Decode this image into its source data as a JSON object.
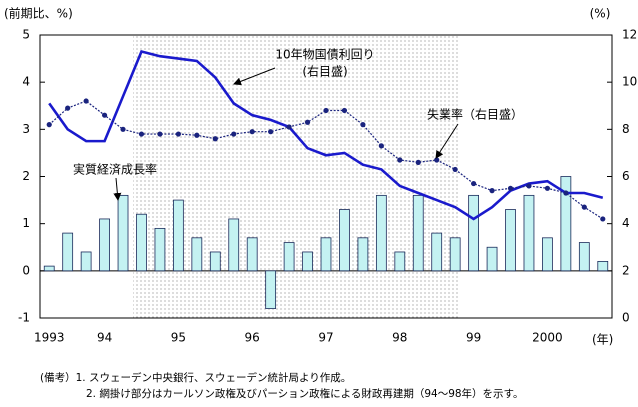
{
  "chart_data": {
    "type": "bar",
    "y_unit_label": "(前期比、%)",
    "y2_unit_label": "(%)",
    "x_unit_label": "(年)",
    "categories": [
      "1993",
      null,
      null,
      "94",
      null,
      null,
      null,
      "95",
      null,
      null,
      null,
      "96",
      null,
      null,
      null,
      "97",
      null,
      null,
      null,
      "98",
      null,
      null,
      null,
      "99",
      null,
      null,
      null,
      "2000",
      null,
      null,
      null
    ],
    "ylim": [
      -1,
      5
    ],
    "yticks": [
      -1,
      0,
      1,
      2,
      3,
      4,
      5
    ],
    "y2lim": [
      0,
      12
    ],
    "y2ticks": [
      0,
      2,
      4,
      6,
      8,
      10,
      12
    ],
    "series": [
      {
        "name": "実質経済成長率",
        "type": "bar",
        "color": "#c4f2f2",
        "values": [
          0.1,
          0.8,
          0.4,
          1.1,
          1.6,
          1.2,
          0.9,
          1.5,
          0.7,
          0.4,
          1.1,
          0.7,
          -0.8,
          0.6,
          0.4,
          0.7,
          1.3,
          0.7,
          1.6,
          0.4,
          1.6,
          0.8,
          0.7,
          1.6,
          0.5,
          1.3,
          1.6,
          0.7,
          2.0,
          0.6,
          0.2
        ]
      },
      {
        "name": "10年物国債利回り",
        "type": "line",
        "axis": "y2",
        "color": "#1a1acc",
        "values": [
          9.1,
          8.0,
          7.5,
          7.5,
          9.4,
          11.3,
          11.1,
          11.0,
          10.9,
          10.2,
          9.1,
          8.6,
          8.4,
          8.1,
          7.2,
          6.9,
          7.0,
          6.5,
          6.3,
          5.6,
          5.3,
          5.0,
          4.7,
          4.2,
          4.7,
          5.4,
          5.7,
          5.8,
          5.3,
          5.3,
          5.1
        ]
      },
      {
        "name": "失業率（右目盛）",
        "type": "line",
        "axis": "y2",
        "color": "#1a237e",
        "markers": true,
        "values": [
          8.2,
          8.9,
          9.2,
          8.6,
          8.0,
          7.8,
          7.8,
          7.8,
          7.75,
          7.6,
          7.8,
          7.9,
          7.9,
          8.1,
          8.3,
          8.8,
          8.8,
          8.2,
          7.3,
          6.7,
          6.6,
          6.7,
          6.3,
          5.7,
          5.4,
          5.5,
          5.6,
          5.5,
          5.3,
          4.7,
          4.2
        ]
      }
    ],
    "annotations": [
      "(右目盛)"
    ],
    "notes": [
      "(備考）1. スウェーデン中央銀行、スウェーデン統計局より作成。",
      "2. 網掛け部分はカールソン政権及びパーション政権による財政再建期（94～98年）を示す。"
    ]
  }
}
